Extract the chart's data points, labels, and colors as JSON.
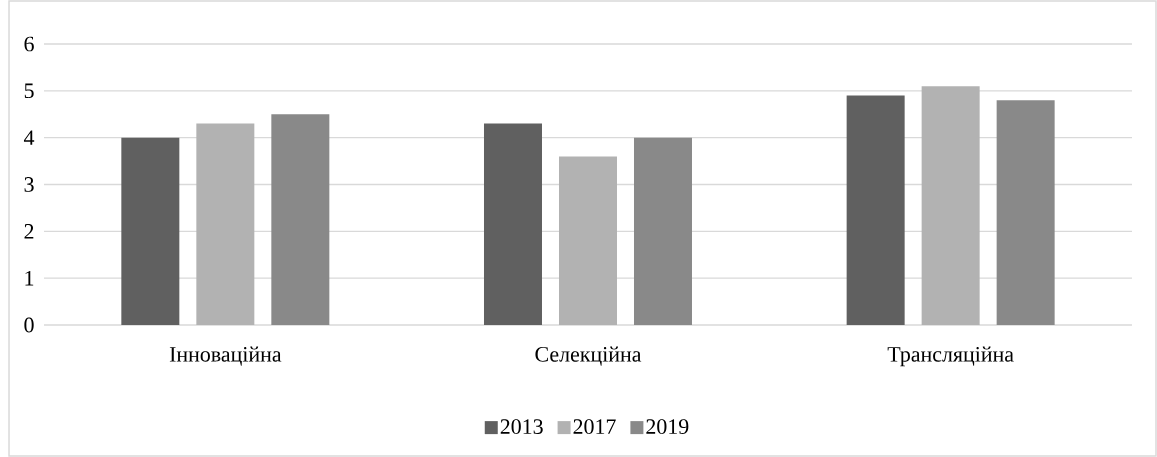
{
  "chart_data": {
    "type": "bar",
    "categories": [
      "Інноваційна",
      "Селекційна",
      "Трансляційна"
    ],
    "series": [
      {
        "name": "2013",
        "color": "#606060",
        "values": [
          4.0,
          4.3,
          4.9
        ]
      },
      {
        "name": "2017",
        "color": "#b2b2b2",
        "values": [
          4.3,
          3.6,
          5.1
        ]
      },
      {
        "name": "2019",
        "color": "#898989",
        "values": [
          4.5,
          4.0,
          4.8
        ]
      }
    ],
    "ylim": [
      0,
      6
    ],
    "yticks": [
      0,
      1,
      2,
      3,
      4,
      5,
      6
    ],
    "grid": "y",
    "legend": "bottom"
  }
}
